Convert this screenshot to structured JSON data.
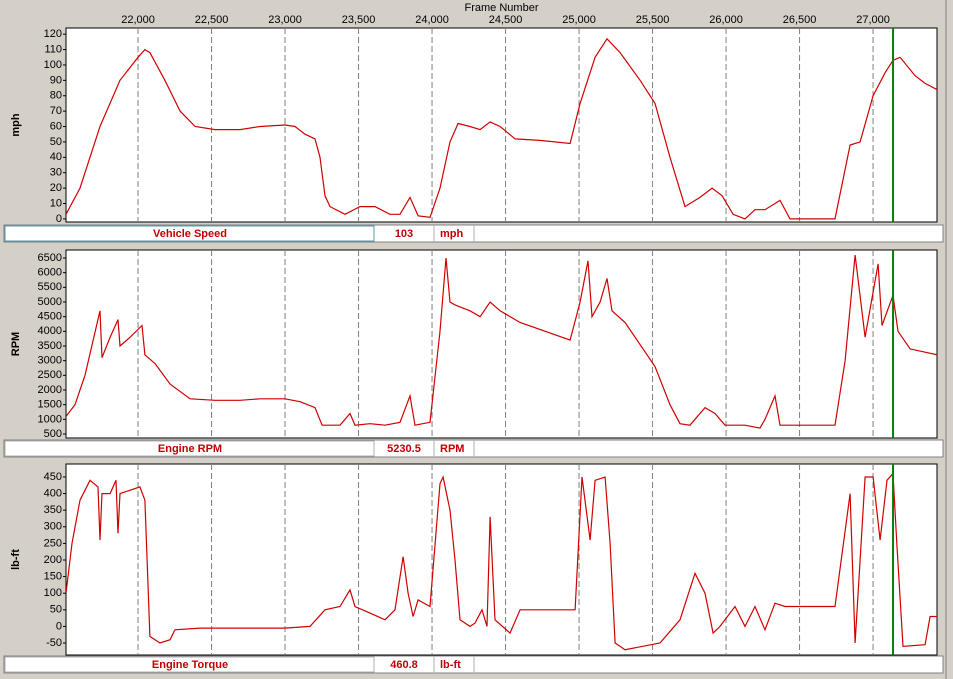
{
  "chart_data": [
    {
      "type": "line",
      "xlabel": "Frame Number",
      "ylabel": "mph",
      "xlim": [
        21510,
        27435
      ],
      "xticks": [
        {
          "value": 22000,
          "label": "22,000"
        },
        {
          "value": 22500,
          "label": "22,500"
        },
        {
          "value": 23000,
          "label": "23,000"
        },
        {
          "value": 23500,
          "label": "23,500"
        },
        {
          "value": 24000,
          "label": "24,000"
        },
        {
          "value": 24500,
          "label": "24,500"
        },
        {
          "value": 25000,
          "label": "25,000"
        },
        {
          "value": 25500,
          "label": "25,500"
        },
        {
          "value": 26000,
          "label": "26,000"
        },
        {
          "value": 26500,
          "label": "26,500"
        },
        {
          "value": 27000,
          "label": "27,000"
        }
      ],
      "cursor": 27136,
      "ylim": [
        -2,
        124
      ],
      "yticks": [
        0,
        10,
        20,
        30,
        40,
        50,
        60,
        70,
        80,
        90,
        100,
        110,
        120
      ],
      "x": [
        21510,
        21605,
        21741,
        21877,
        22000,
        22047,
        22081,
        22183,
        22286,
        22388,
        22524,
        22694,
        22830,
        23000,
        23068,
        23136,
        23204,
        23238,
        23272,
        23306,
        23408,
        23510,
        23612,
        23714,
        23782,
        23850,
        23905,
        23986,
        24054,
        24122,
        24177,
        24258,
        24327,
        24395,
        24463,
        24565,
        24735,
        24939,
        25007,
        25109,
        25190,
        25279,
        25415,
        25517,
        25619,
        25721,
        25823,
        25905,
        25973,
        26048,
        26129,
        26197,
        26265,
        26367,
        26435,
        26571,
        26741,
        26844,
        26912,
        27000,
        27082,
        27136,
        27184,
        27286,
        27354,
        27435
      ],
      "series": [
        {
          "name": "Vehicle Speed",
          "color": "#d00000",
          "values": [
            3,
            20,
            60,
            90,
            105,
            110,
            108,
            90,
            70,
            60,
            58,
            58,
            60,
            61,
            60,
            55,
            52,
            40,
            15,
            8,
            3,
            8,
            8,
            3,
            3,
            14,
            2,
            1,
            20,
            50,
            62,
            60,
            58,
            63,
            60,
            52,
            51,
            49,
            75,
            105,
            117,
            108,
            90,
            75,
            40,
            8,
            14,
            20,
            15,
            3,
            0,
            6,
            6,
            12,
            0,
            0,
            0,
            48,
            50,
            80,
            95,
            103,
            105,
            93,
            88,
            84
          ]
        }
      ],
      "readout": 103,
      "unit": "mph"
    },
    {
      "type": "line",
      "ylabel": "RPM",
      "ylim": [
        364,
        6773
      ],
      "yticks": [
        500,
        1000,
        1500,
        2000,
        2500,
        3000,
        3500,
        4000,
        4500,
        5000,
        5500,
        6000,
        6500
      ],
      "x": [
        21510,
        21571,
        21639,
        21741,
        21755,
        21810,
        21864,
        21877,
        21946,
        22027,
        22047,
        22116,
        22218,
        22354,
        22524,
        22694,
        22830,
        23000,
        23102,
        23204,
        23252,
        23374,
        23442,
        23476,
        23578,
        23680,
        23782,
        23850,
        23884,
        23986,
        24054,
        24095,
        24122,
        24156,
        24258,
        24327,
        24395,
        24463,
        24599,
        24939,
        25007,
        25061,
        25088,
        25143,
        25190,
        25224,
        25313,
        25517,
        25619,
        25687,
        25755,
        25857,
        25925,
        25993,
        26129,
        26231,
        26265,
        26333,
        26367,
        26571,
        26741,
        26810,
        26878,
        26946,
        27034,
        27061,
        27136,
        27170,
        27252,
        27435
      ],
      "series": [
        {
          "name": "Engine RPM",
          "color": "#d00000",
          "values": [
            1100,
            1500,
            2500,
            4700,
            3100,
            3800,
            4400,
            3500,
            3800,
            4200,
            3200,
            2900,
            2200,
            1700,
            1650,
            1650,
            1700,
            1700,
            1600,
            1400,
            800,
            800,
            1200,
            800,
            850,
            800,
            900,
            1800,
            800,
            900,
            4000,
            6500,
            5000,
            4900,
            4700,
            4500,
            5000,
            4700,
            4300,
            3700,
            5000,
            6400,
            4500,
            5000,
            5800,
            4700,
            4300,
            2800,
            1500,
            850,
            800,
            1400,
            1200,
            800,
            800,
            700,
            1000,
            1800,
            800,
            800,
            800,
            3000,
            6600,
            3800,
            6300,
            4200,
            5230,
            4000,
            3400,
            3200
          ]
        }
      ],
      "readout": 5230.5,
      "unit": "RPM"
    },
    {
      "type": "line",
      "ylabel": "lb-ft",
      "ylim": [
        -86,
        489
      ],
      "yticks": [
        -50,
        0,
        50,
        100,
        150,
        200,
        250,
        300,
        350,
        400,
        450
      ],
      "x": [
        21510,
        21551,
        21605,
        21673,
        21728,
        21741,
        21755,
        21810,
        21850,
        21864,
        21877,
        22013,
        22047,
        22081,
        22149,
        22218,
        22251,
        22422,
        22694,
        23000,
        23170,
        23272,
        23374,
        23442,
        23476,
        23578,
        23680,
        23748,
        23803,
        23837,
        23871,
        23905,
        23986,
        24054,
        24075,
        24122,
        24156,
        24190,
        24258,
        24292,
        24340,
        24374,
        24395,
        24428,
        24530,
        24599,
        24871,
        24973,
        25020,
        25075,
        25109,
        25177,
        25211,
        25245,
        25313,
        25551,
        25687,
        25789,
        25857,
        25912,
        25959,
        26061,
        26129,
        26197,
        26265,
        26333,
        26401,
        26571,
        26741,
        26844,
        26878,
        26946,
        27000,
        27048,
        27095,
        27136,
        27163,
        27204,
        27354,
        27388,
        27435
      ],
      "series": [
        {
          "name": "Engine Torque",
          "color": "#d00000",
          "values": [
            100,
            250,
            380,
            440,
            420,
            260,
            400,
            400,
            440,
            280,
            400,
            420,
            380,
            -30,
            -50,
            -40,
            -10,
            -5,
            -5,
            -5,
            0,
            50,
            60,
            110,
            60,
            40,
            20,
            50,
            210,
            100,
            30,
            80,
            60,
            430,
            450,
            350,
            200,
            20,
            0,
            10,
            50,
            0,
            330,
            20,
            -20,
            50,
            50,
            50,
            450,
            260,
            440,
            450,
            250,
            -50,
            -70,
            -50,
            20,
            160,
            100,
            -20,
            0,
            60,
            0,
            60,
            -10,
            70,
            60,
            60,
            60,
            400,
            -50,
            450,
            450,
            260,
            440,
            460,
            240,
            -60,
            -55,
            30,
            30
          ]
        }
      ],
      "readout": 460.8,
      "unit": "lb-ft"
    }
  ]
}
